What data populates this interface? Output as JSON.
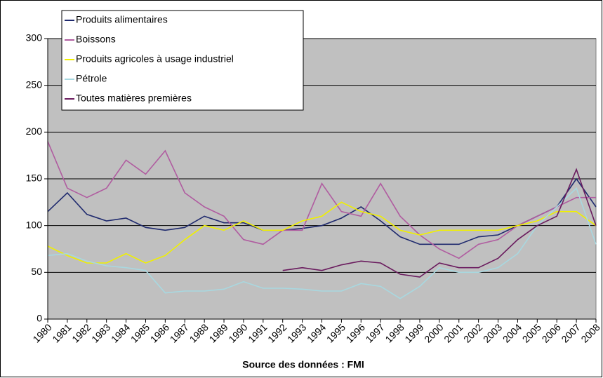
{
  "chart_data": {
    "type": "line",
    "source": "Source des données : FMI",
    "x": [
      1980,
      1981,
      1982,
      1983,
      1984,
      1985,
      1986,
      1987,
      1988,
      1989,
      1990,
      1991,
      1992,
      1993,
      1994,
      1995,
      1996,
      1997,
      1998,
      1999,
      2000,
      2001,
      2002,
      2003,
      2004,
      2005,
      2006,
      2007,
      2008
    ],
    "series": [
      {
        "name": "Produits alimentaires",
        "color": "#1f2a6e",
        "values": [
          115,
          135,
          112,
          105,
          108,
          98,
          95,
          98,
          110,
          103,
          103,
          95,
          95,
          97,
          100,
          108,
          120,
          105,
          88,
          80,
          80,
          80,
          88,
          90,
          100,
          110,
          120,
          150,
          120
        ]
      },
      {
        "name": "Boissons",
        "color": "#b05ca0",
        "values": [
          190,
          140,
          130,
          140,
          170,
          155,
          180,
          135,
          120,
          110,
          85,
          80,
          95,
          95,
          145,
          115,
          110,
          145,
          110,
          90,
          75,
          65,
          80,
          85,
          100,
          110,
          120,
          130,
          130
        ]
      },
      {
        "name": "Produits agricoles à usage industriel",
        "color": "#f0f000",
        "values": [
          78,
          68,
          60,
          60,
          70,
          60,
          68,
          85,
          100,
          95,
          105,
          95,
          95,
          105,
          110,
          125,
          115,
          110,
          95,
          90,
          95,
          95,
          95,
          95,
          100,
          105,
          115,
          115,
          100
        ]
      },
      {
        "name": "Pétrole",
        "color": "#a8d8e0",
        "values": [
          68,
          70,
          62,
          57,
          55,
          52,
          28,
          30,
          30,
          32,
          40,
          33,
          33,
          32,
          30,
          30,
          38,
          35,
          22,
          35,
          55,
          50,
          50,
          55,
          70,
          100,
          120,
          140,
          80
        ]
      },
      {
        "name": "Toutes matières premières",
        "color": "#6a1b5e",
        "values": [
          null,
          null,
          null,
          null,
          null,
          null,
          null,
          null,
          null,
          null,
          null,
          null,
          52,
          55,
          52,
          58,
          62,
          60,
          48,
          45,
          60,
          55,
          55,
          65,
          85,
          100,
          110,
          160,
          100
        ]
      }
    ],
    "xlim": [
      1980,
      2008
    ],
    "xticks": [
      1980,
      1981,
      1982,
      1983,
      1984,
      1985,
      1986,
      1987,
      1988,
      1989,
      1990,
      1991,
      1992,
      1993,
      1994,
      1995,
      1996,
      1997,
      1998,
      1999,
      2000,
      2001,
      2002,
      2003,
      2004,
      2005,
      2006,
      2007,
      2008
    ],
    "ylim": [
      0,
      300
    ],
    "yticks": [
      0,
      50,
      100,
      150,
      200,
      250,
      300
    ],
    "grid": true,
    "legend": "upper left",
    "background": "#c0c0c0"
  }
}
